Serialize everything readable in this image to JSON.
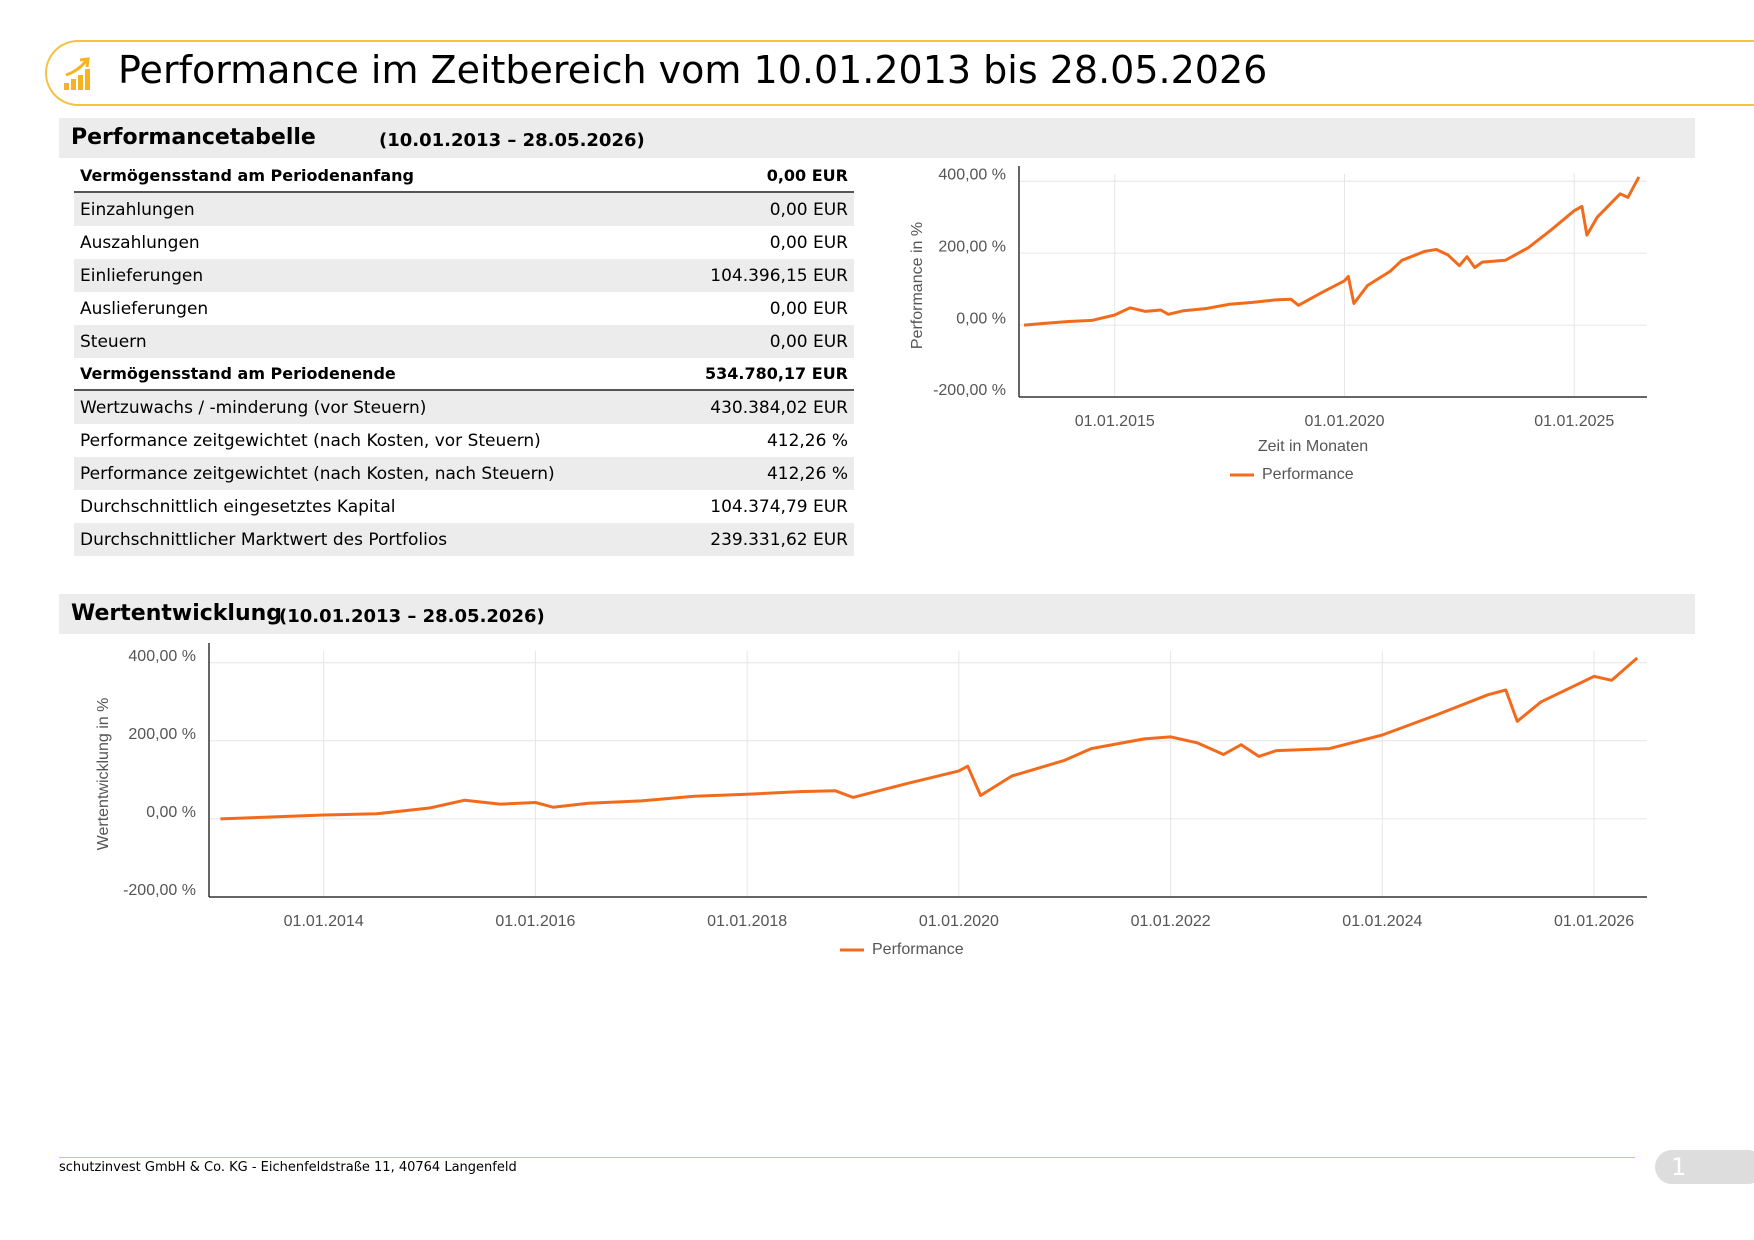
{
  "header": {
    "title": "Performance im Zeitbereich vom 10.01.2013 bis 28.05.2026"
  },
  "table_section": {
    "title": "Performancetabelle",
    "period": "(10.01.2013 – 28.05.2026)"
  },
  "table": {
    "rows": [
      [
        "Vermögensstand am Periodenanfang",
        "0,00 EUR"
      ],
      [
        "Einzahlungen",
        "0,00 EUR"
      ],
      [
        "Auszahlungen",
        "0,00 EUR"
      ],
      [
        "Einlieferungen",
        "104.396,15 EUR"
      ],
      [
        "Auslieferungen",
        "0,00 EUR"
      ],
      [
        "Steuern",
        "0,00 EUR"
      ],
      [
        "Vermögensstand am Periodenende",
        "534.780,17 EUR"
      ],
      [
        "Wertzuwachs / -minderung (vor Steuern)",
        "430.384,02 EUR"
      ],
      [
        "Performance zeitgewichtet (nach Kosten, vor Steuern)",
        "412,26 %"
      ],
      [
        "Performance zeitgewichtet (nach Kosten, nach Steuern)",
        "412,26 %"
      ],
      [
        "Durchschnittlich eingesetztes Kapital",
        "104.374,79 EUR"
      ],
      [
        "Durchschnittlicher Marktwert des Portfolios",
        "239.331,62 EUR"
      ]
    ]
  },
  "chart_section": {
    "title": "Wertentwicklung",
    "period": "(10.01.2013 – 28.05.2026)"
  },
  "chart_data": [
    {
      "type": "line",
      "y_label": "Performance in %",
      "x_label": "Zeit in Monaten",
      "x": [
        "10.01.2013",
        "01.07.2013",
        "01.01.2014",
        "01.07.2014",
        "01.01.2015",
        "01.05.2015",
        "01.09.2015",
        "01.01.2016",
        "01.03.2016",
        "01.07.2016",
        "01.01.2017",
        "01.07.2017",
        "01.01.2018",
        "01.07.2018",
        "01.11.2018",
        "01.01.2019",
        "01.07.2019",
        "01.01.2020",
        "01.02.2020",
        "15.03.2020",
        "01.07.2020",
        "01.01.2021",
        "01.04.2021",
        "01.10.2021",
        "01.01.2022",
        "01.04.2022",
        "01.07.2022",
        "01.09.2022",
        "01.11.2022",
        "01.01.2023",
        "01.07.2023",
        "01.01.2024",
        "01.07.2024",
        "01.01.2025",
        "01.03.2025",
        "10.04.2025",
        "01.07.2025",
        "01.01.2026",
        "01.03.2026",
        "28.05.2026"
      ],
      "series": [
        {
          "name": "Performance",
          "color": "#f26b1d",
          "values": [
            0,
            5,
            10,
            13,
            28,
            48,
            38,
            42,
            30,
            40,
            46,
            58,
            63,
            70,
            72,
            55,
            90,
            123,
            135,
            60,
            110,
            150,
            180,
            205,
            210,
            195,
            165,
            190,
            160,
            175,
            180,
            215,
            265,
            318,
            330,
            250,
            300,
            365,
            355,
            412
          ]
        }
      ],
      "xlim": [
        "01.12.2012",
        "01.08.2026"
      ],
      "xticks": [
        "01.01.2015",
        "01.01.2020",
        "01.01.2025"
      ],
      "ylim": [
        -200,
        420
      ],
      "yticks": [
        {
          "value": -200,
          "label": "-200,00 %"
        },
        {
          "value": 0,
          "label": "0,00 %"
        },
        {
          "value": 200,
          "label": "200,00 %"
        },
        {
          "value": 400,
          "label": "400,00 %"
        }
      ],
      "grid": true
    },
    {
      "type": "line",
      "y_label": "Wertentwicklung in %",
      "x": [
        "10.01.2013",
        "01.07.2013",
        "01.01.2014",
        "01.07.2014",
        "01.01.2015",
        "01.05.2015",
        "01.09.2015",
        "01.01.2016",
        "01.03.2016",
        "01.07.2016",
        "01.01.2017",
        "01.07.2017",
        "01.01.2018",
        "01.07.2018",
        "01.11.2018",
        "01.01.2019",
        "01.07.2019",
        "01.01.2020",
        "01.02.2020",
        "15.03.2020",
        "01.07.2020",
        "01.01.2021",
        "01.04.2021",
        "01.10.2021",
        "01.01.2022",
        "01.04.2022",
        "01.07.2022",
        "01.09.2022",
        "01.11.2022",
        "01.01.2023",
        "01.07.2023",
        "01.01.2024",
        "01.07.2024",
        "01.01.2025",
        "01.03.2025",
        "10.04.2025",
        "01.07.2025",
        "01.01.2026",
        "01.03.2026",
        "28.05.2026"
      ],
      "series": [
        {
          "name": "Performance",
          "color": "#f26b1d",
          "values": [
            0,
            5,
            10,
            13,
            28,
            48,
            38,
            42,
            30,
            40,
            46,
            58,
            63,
            70,
            72,
            55,
            90,
            123,
            135,
            60,
            110,
            150,
            180,
            205,
            210,
            195,
            165,
            190,
            160,
            175,
            180,
            215,
            265,
            318,
            330,
            250,
            300,
            365,
            355,
            412
          ]
        }
      ],
      "xlim": [
        "01.12.2012",
        "01.07.2026"
      ],
      "xticks": [
        "01.01.2014",
        "01.01.2016",
        "01.01.2018",
        "01.01.2020",
        "01.01.2022",
        "01.01.2024",
        "01.01.2026"
      ],
      "ylim": [
        -200,
        430
      ],
      "yticks": [
        {
          "value": -200,
          "label": "-200,00 %"
        },
        {
          "value": 0,
          "label": "0,00 %"
        },
        {
          "value": 200,
          "label": "200,00 %"
        },
        {
          "value": 400,
          "label": "400,00 %"
        }
      ],
      "grid": true
    }
  ],
  "footer": {
    "text": "schutzinvest GmbH & Co. KG - Eichenfeldstraße 11, 40764 Langenfeld",
    "page_number": "1"
  }
}
